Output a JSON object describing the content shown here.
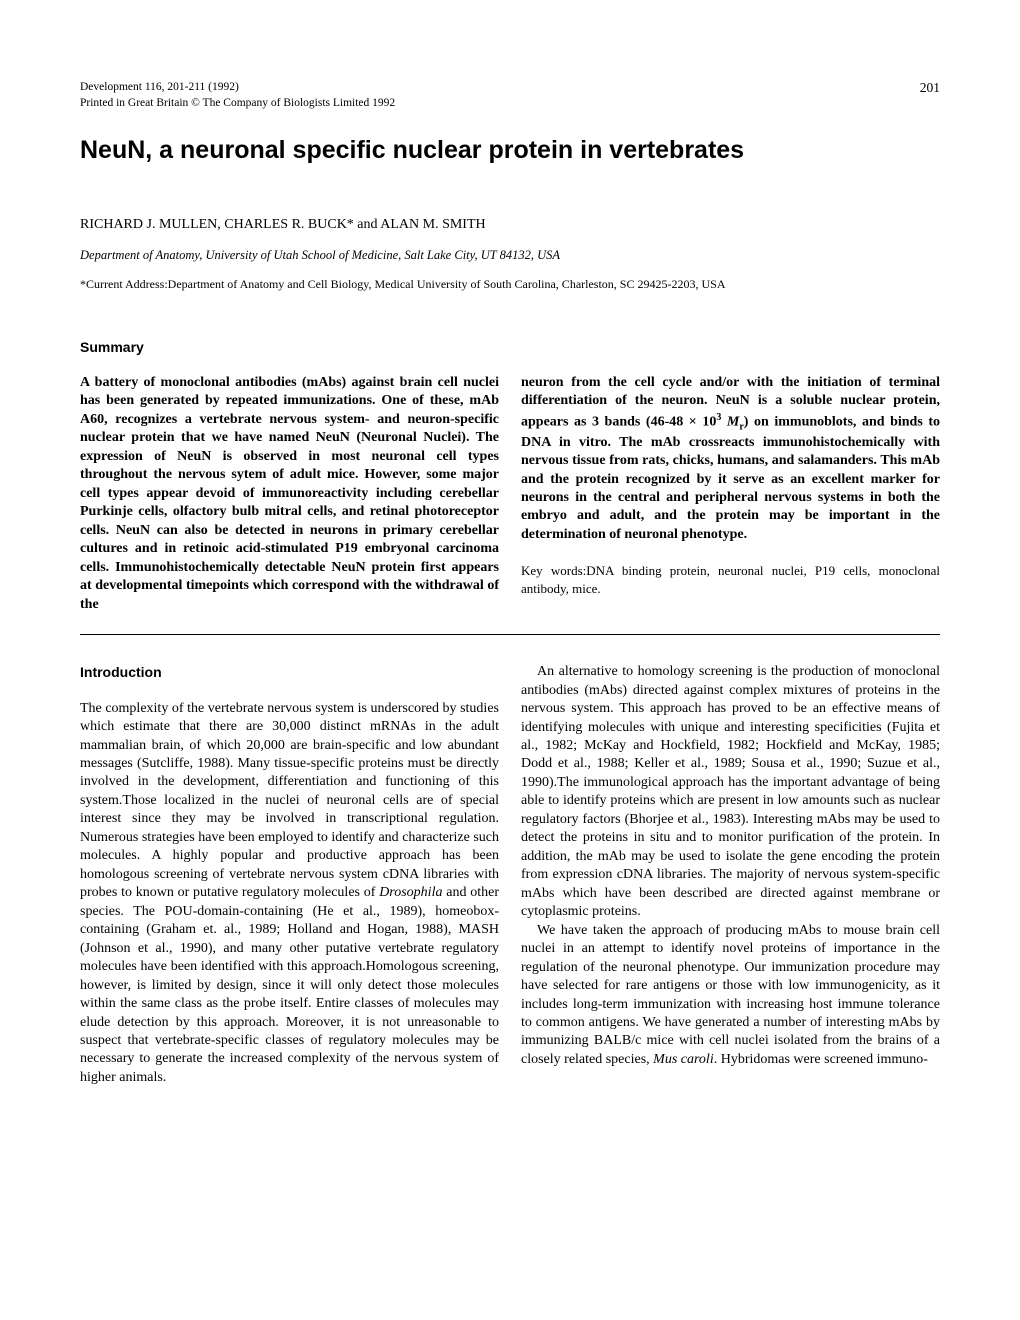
{
  "header": {
    "journal_line1": "Development 116, 201-211 (1992)",
    "journal_line2": "Printed in Great Britain © The Company of Biologists Limited 1992",
    "page_number": "201"
  },
  "title": "NeuN, a neuronal specific nuclear protein in vertebrates",
  "authors": "RICHARD J. MULLEN, CHARLES R. BUCK* and ALAN M. SMITH",
  "affiliation": "Department of Anatomy, University of Utah School of Medicine, Salt Lake City, UT 84132, USA",
  "current_address": "*Current Address:Department of Anatomy and Cell Biology, Medical University of South Carolina, Charleston, SC 29425-2203, USA",
  "summary": {
    "heading": "Summary",
    "col1": "A battery of monoclonal antibodies (mAbs) against brain cell nuclei has been generated by repeated immunizations. One of these, mAb A60, recognizes a vertebrate nervous system- and neuron-specific nuclear protein that we have named NeuN (Neuronal Nuclei). The expression of NeuN is observed in most neuronal cell types throughout the nervous sytem of adult mice. However, some major cell types appear devoid of immunoreactivity including cerebellar Purkinje cells, olfactory bulb mitral cells, and retinal photoreceptor cells. NeuN can also be detected in neurons in primary cerebellar cultures and in retinoic acid-stimulated P19 embryonal carcinoma cells. Immunohistochemically detectable NeuN protein first appears at developmental timepoints which correspond with the withdrawal of the",
    "col2_part1": "neuron from the cell cycle and/or with the initiation of terminal differentiation of the neuron. NeuN is a soluble nuclear protein, appears as 3 bands (46-48 × 10",
    "col2_sup": "3",
    "col2_msub": "M",
    "col2_rsub": "r",
    "col2_part2": ") on immunoblots, and binds to DNA in vitro. The mAb crossreacts immunohistochemically with nervous tissue from rats, chicks, humans, and salamanders. This mAb and the protein recognized by it serve as an excellent marker for neurons in the central and peripheral nervous systems in both the embryo and adult, and the protein may be important in the determination of neuronal phenotype.",
    "keywords": "Key words:DNA binding protein, neuronal nuclei, P19 cells, monoclonal antibody, mice."
  },
  "introduction": {
    "heading": "Introduction",
    "col1_p1_part1": "The complexity of the vertebrate nervous system is underscored by studies which estimate that there are 30,000 distinct mRNAs in the adult mammalian brain, of which 20,000 are brain-specific and low abundant messages (Sutcliffe, 1988). Many tissue-specific proteins must be directly involved in the development, differentiation and functioning of this system.Those localized in the nuclei of neuronal cells are of special interest since they may be involved in transcriptional regulation. Numerous strategies have been employed to identify and characterize such molecules. A highly popular and productive approach has been homologous screening of vertebrate nervous system cDNA libraries with probes to known or putative regulatory molecules of ",
    "col1_p1_italic": "Drosophila",
    "col1_p1_part2": " and other species. The POU-domain-containing (He et al., 1989), homeobox-containing (Graham et. al., 1989; Holland and Hogan, 1988), MASH (Johnson et al., 1990), and many other putative vertebrate regulatory molecules have been identified with this approach.Homologous screening, however, is limited by design, since it will only detect those molecules within the same class as the probe itself. Entire classes of molecules may elude detection by this approach. Moreover, it is not unreasonable to suspect that vertebrate-specific classes of regulatory molecules may be necessary to generate the increased complexity of the nervous system of higher animals.",
    "col2_p1": "An alternative to homology screening is the production of monoclonal antibodies (mAbs) directed against complex mixtures of proteins in the nervous system. This approach has proved to be an effective means of identifying molecules with unique and interesting specificities (Fujita et al., 1982; McKay and Hockfield, 1982; Hockfield and McKay, 1985; Dodd et al., 1988; Keller et al., 1989; Sousa et al., 1990; Suzue et al., 1990).The immunological approach has the important advantage of being able to identify proteins which are present in low amounts such as nuclear regulatory factors (Bhorjee et al., 1983). Interesting mAbs may be used to detect the proteins in situ and to monitor purification of the protein. In addition, the mAb may be used to isolate the gene encoding the protein from expression cDNA libraries. The majority of nervous system-specific mAbs which have been described are directed against membrane or cytoplasmic proteins.",
    "col2_p2_part1": "We have taken the approach of producing mAbs to mouse brain cell nuclei in an attempt to identify novel proteins of importance in the regulation of the neuronal phenotype. Our immunization procedure may have selected for rare antigens or those with low immunogenicity, as it includes long-term immunization with increasing host immune tolerance to common antigens. We have generated a number of interesting mAbs by immunizing BALB/c mice with cell nuclei isolated from the brains of a closely related species, ",
    "col2_p2_italic": "Mus caroli",
    "col2_p2_part2": ". Hybridomas were screened immuno-"
  }
}
